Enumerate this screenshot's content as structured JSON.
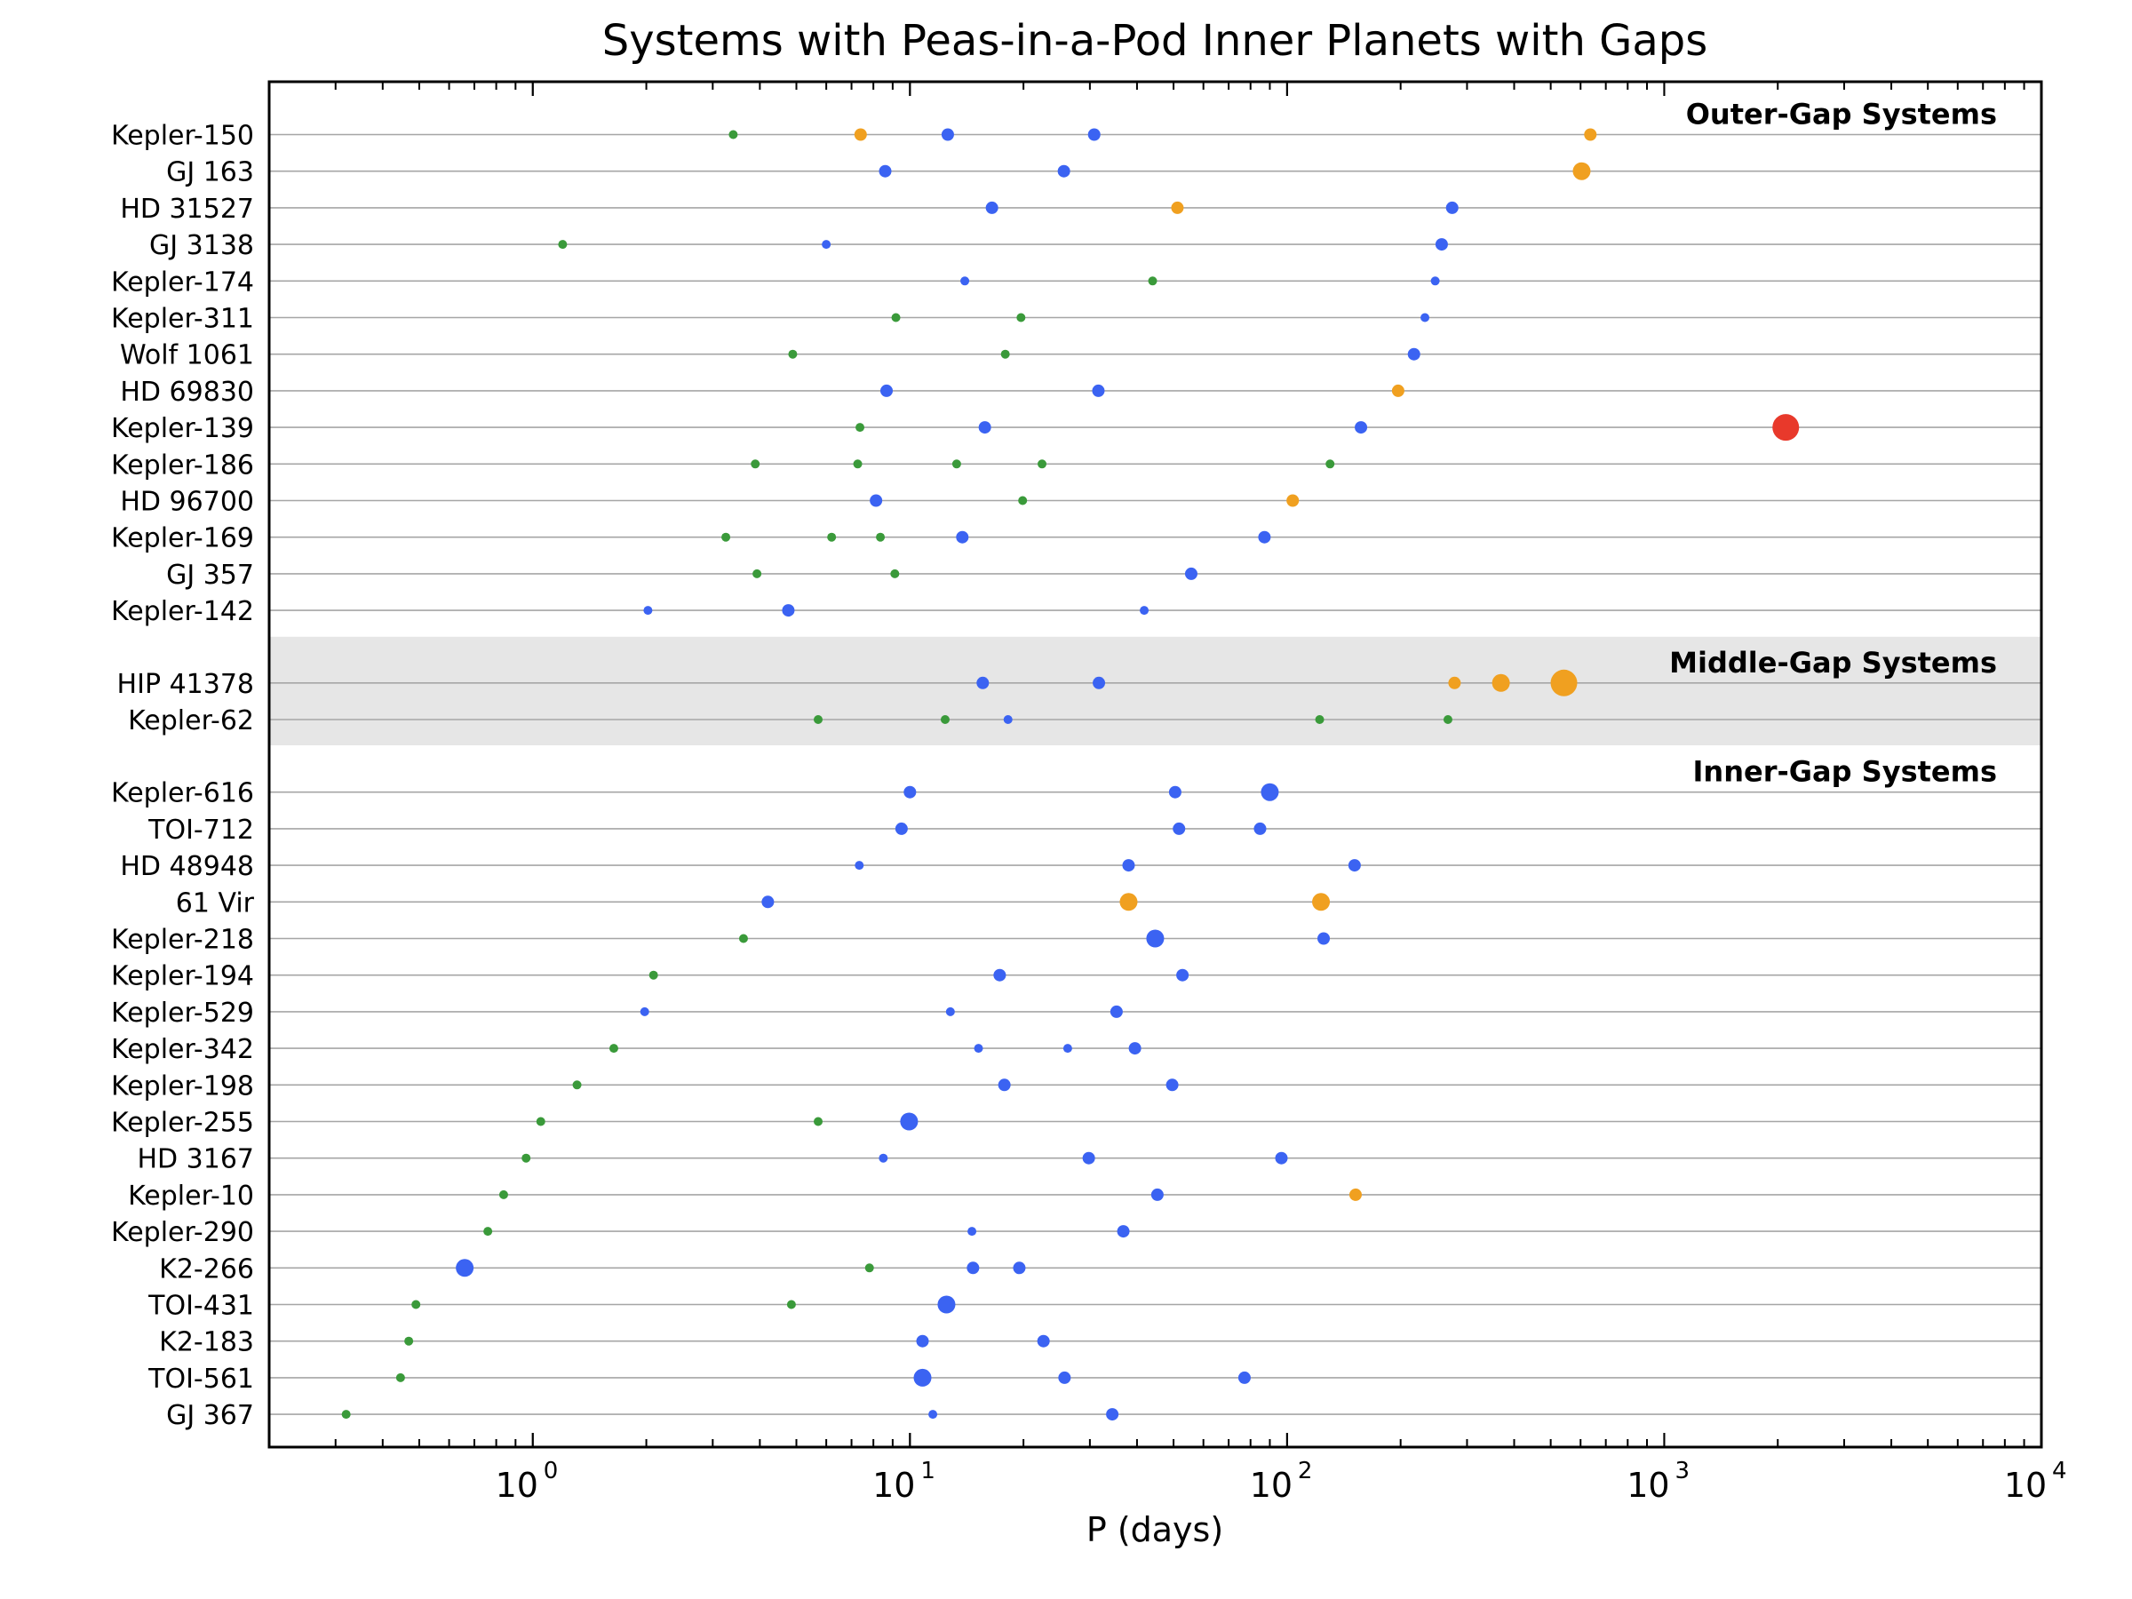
{
  "chart_data": {
    "type": "scatter",
    "title": "Systems with Peas-in-a-Pod Inner Planets with Gaps",
    "xlabel": "P (days)",
    "xscale": "log",
    "xlim": [
      0.2,
      10000
    ],
    "x_ticks": [
      {
        "base": "10",
        "exp": "0",
        "value": 1
      },
      {
        "base": "10",
        "exp": "1",
        "value": 10
      },
      {
        "base": "10",
        "exp": "2",
        "value": 100
      },
      {
        "base": "10",
        "exp": "3",
        "value": 1000
      },
      {
        "base": "10",
        "exp": "4",
        "value": 10000
      }
    ],
    "colors": {
      "green": "#3a9a3a",
      "blue": "#3b63f2",
      "orange": "#f0a020",
      "red": "#e8392b",
      "band": "#e6e6e6",
      "rowline": "#a6a6a6"
    },
    "size_scale": {
      "s": 5,
      "m": 7,
      "l": 10,
      "xl": 15
    },
    "sections": [
      {
        "label": "Outer-Gap Systems",
        "shaded": false,
        "systems": [
          {
            "name": "Kepler-150",
            "planets": [
              [
                3.4,
                "green",
                "s"
              ],
              [
                7.4,
                "orange",
                "m"
              ],
              [
                12.6,
                "blue",
                "m"
              ],
              [
                30.8,
                "blue",
                "m"
              ],
              [
                637,
                "orange",
                "m"
              ]
            ]
          },
          {
            "name": "GJ 163",
            "planets": [
              [
                8.6,
                "blue",
                "m"
              ],
              [
                25.6,
                "blue",
                "m"
              ],
              [
                604,
                "orange",
                "l"
              ]
            ]
          },
          {
            "name": "HD 31527",
            "planets": [
              [
                16.5,
                "blue",
                "m"
              ],
              [
                51.2,
                "orange",
                "m"
              ],
              [
                274,
                "blue",
                "m"
              ]
            ]
          },
          {
            "name": "GJ 3138",
            "planets": [
              [
                1.2,
                "green",
                "s"
              ],
              [
                6.0,
                "blue",
                "s"
              ],
              [
                257,
                "blue",
                "m"
              ]
            ]
          },
          {
            "name": "Kepler-174",
            "planets": [
              [
                13.98,
                "blue",
                "s"
              ],
              [
                44.0,
                "green",
                "s"
              ],
              [
                247,
                "blue",
                "s"
              ]
            ]
          },
          {
            "name": "Kepler-311",
            "planets": [
              [
                9.18,
                "green",
                "s"
              ],
              [
                19.7,
                "green",
                "s"
              ],
              [
                232,
                "blue",
                "s"
              ]
            ]
          },
          {
            "name": "Wolf 1061",
            "planets": [
              [
                4.89,
                "green",
                "s"
              ],
              [
                17.9,
                "green",
                "s"
              ],
              [
                217,
                "blue",
                "m"
              ]
            ]
          },
          {
            "name": "HD 69830",
            "planets": [
              [
                8.67,
                "blue",
                "m"
              ],
              [
                31.6,
                "blue",
                "m"
              ],
              [
                197,
                "orange",
                "m"
              ]
            ]
          },
          {
            "name": "Kepler-139",
            "planets": [
              [
                7.37,
                "green",
                "s"
              ],
              [
                15.8,
                "blue",
                "m"
              ],
              [
                157,
                "blue",
                "m"
              ],
              [
                2100,
                "red",
                "xl"
              ]
            ]
          },
          {
            "name": "Kepler-186",
            "planets": [
              [
                3.89,
                "green",
                "s"
              ],
              [
                7.27,
                "green",
                "s"
              ],
              [
                13.3,
                "green",
                "s"
              ],
              [
                22.4,
                "green",
                "s"
              ],
              [
                130,
                "green",
                "s"
              ]
            ]
          },
          {
            "name": "HD 96700",
            "planets": [
              [
                8.13,
                "blue",
                "m"
              ],
              [
                19.9,
                "green",
                "s"
              ],
              [
                103.5,
                "orange",
                "m"
              ]
            ]
          },
          {
            "name": "Kepler-169",
            "planets": [
              [
                3.25,
                "green",
                "s"
              ],
              [
                6.2,
                "green",
                "s"
              ],
              [
                8.35,
                "green",
                "s"
              ],
              [
                13.77,
                "blue",
                "m"
              ],
              [
                87.1,
                "blue",
                "m"
              ]
            ]
          },
          {
            "name": "GJ 357",
            "planets": [
              [
                3.93,
                "green",
                "s"
              ],
              [
                9.12,
                "green",
                "s"
              ],
              [
                55.7,
                "blue",
                "m"
              ]
            ]
          },
          {
            "name": "Kepler-142",
            "planets": [
              [
                2.02,
                "blue",
                "s"
              ],
              [
                4.76,
                "blue",
                "m"
              ],
              [
                41.8,
                "blue",
                "s"
              ]
            ]
          }
        ]
      },
      {
        "label": "Middle-Gap Systems",
        "shaded": true,
        "systems": [
          {
            "name": "HIP 41378",
            "planets": [
              [
                15.6,
                "blue",
                "m"
              ],
              [
                31.7,
                "blue",
                "m"
              ],
              [
                278,
                "orange",
                "m"
              ],
              [
                369,
                "orange",
                "l"
              ],
              [
                542,
                "orange",
                "xl"
              ]
            ]
          },
          {
            "name": "Kepler-62",
            "planets": [
              [
                5.71,
                "green",
                "s"
              ],
              [
                12.4,
                "green",
                "s"
              ],
              [
                18.2,
                "blue",
                "s"
              ],
              [
                122,
                "green",
                "s"
              ],
              [
                267,
                "green",
                "s"
              ]
            ]
          }
        ]
      },
      {
        "label": "Inner-Gap Systems",
        "shaded": false,
        "systems": [
          {
            "name": "Kepler-616",
            "planets": [
              [
                10.0,
                "blue",
                "m"
              ],
              [
                50.5,
                "blue",
                "m"
              ],
              [
                90,
                "blue",
                "l"
              ]
            ]
          },
          {
            "name": "TOI-712",
            "planets": [
              [
                9.5,
                "blue",
                "m"
              ],
              [
                51.7,
                "blue",
                "m"
              ],
              [
                84.8,
                "blue",
                "m"
              ]
            ]
          },
          {
            "name": "HD 48948",
            "planets": [
              [
                7.34,
                "blue",
                "s"
              ],
              [
                38.0,
                "blue",
                "m"
              ],
              [
                151,
                "blue",
                "m"
              ]
            ]
          },
          {
            "name": "61 Vir",
            "planets": [
              [
                4.2,
                "blue",
                "m"
              ],
              [
                38.0,
                "orange",
                "l"
              ],
              [
                123,
                "orange",
                "l"
              ]
            ]
          },
          {
            "name": "Kepler-218",
            "planets": [
              [
                3.62,
                "green",
                "s"
              ],
              [
                44.7,
                "blue",
                "l"
              ],
              [
                125,
                "blue",
                "m"
              ]
            ]
          },
          {
            "name": "Kepler-194",
            "planets": [
              [
                2.09,
                "green",
                "s"
              ],
              [
                17.3,
                "blue",
                "m"
              ],
              [
                52.8,
                "blue",
                "m"
              ]
            ]
          },
          {
            "name": "Kepler-529",
            "planets": [
              [
                1.98,
                "blue",
                "s"
              ],
              [
                12.8,
                "blue",
                "s"
              ],
              [
                35.3,
                "blue",
                "m"
              ]
            ]
          },
          {
            "name": "Kepler-342",
            "planets": [
              [
                1.64,
                "green",
                "s"
              ],
              [
                15.2,
                "blue",
                "s"
              ],
              [
                26.2,
                "blue",
                "s"
              ],
              [
                39.5,
                "blue",
                "m"
              ]
            ]
          },
          {
            "name": "Kepler-198",
            "planets": [
              [
                1.31,
                "green",
                "s"
              ],
              [
                17.8,
                "blue",
                "m"
              ],
              [
                49.6,
                "blue",
                "m"
              ]
            ]
          },
          {
            "name": "Kepler-255",
            "planets": [
              [
                1.05,
                "green",
                "s"
              ],
              [
                5.71,
                "green",
                "s"
              ],
              [
                9.95,
                "blue",
                "l"
              ]
            ]
          },
          {
            "name": "HD 3167",
            "planets": [
              [
                0.96,
                "green",
                "s"
              ],
              [
                8.5,
                "blue",
                "s"
              ],
              [
                29.8,
                "blue",
                "m"
              ],
              [
                96.6,
                "blue",
                "m"
              ]
            ]
          },
          {
            "name": "Kepler-10",
            "planets": [
              [
                0.837,
                "green",
                "s"
              ],
              [
                45.3,
                "blue",
                "m"
              ],
              [
                151.9,
                "orange",
                "m"
              ]
            ]
          },
          {
            "name": "Kepler-290",
            "planets": [
              [
                0.76,
                "green",
                "s"
              ],
              [
                14.6,
                "blue",
                "s"
              ],
              [
                36.8,
                "blue",
                "m"
              ]
            ]
          },
          {
            "name": "K2-266",
            "planets": [
              [
                0.66,
                "blue",
                "l"
              ],
              [
                7.81,
                "green",
                "s"
              ],
              [
                14.7,
                "blue",
                "m"
              ],
              [
                19.5,
                "blue",
                "m"
              ]
            ]
          },
          {
            "name": "TOI-431",
            "planets": [
              [
                0.49,
                "green",
                "s"
              ],
              [
                4.85,
                "green",
                "s"
              ],
              [
                12.5,
                "blue",
                "l"
              ]
            ]
          },
          {
            "name": "K2-183",
            "planets": [
              [
                0.469,
                "green",
                "s"
              ],
              [
                10.8,
                "blue",
                "m"
              ],
              [
                22.6,
                "blue",
                "m"
              ]
            ]
          },
          {
            "name": "TOI-561",
            "planets": [
              [
                0.446,
                "green",
                "s"
              ],
              [
                10.8,
                "blue",
                "l"
              ],
              [
                25.7,
                "blue",
                "m"
              ],
              [
                77.1,
                "blue",
                "m"
              ]
            ]
          },
          {
            "name": "GJ 367",
            "planets": [
              [
                0.32,
                "green",
                "s"
              ],
              [
                11.5,
                "blue",
                "s"
              ],
              [
                34.4,
                "blue",
                "m"
              ]
            ]
          }
        ]
      }
    ]
  }
}
